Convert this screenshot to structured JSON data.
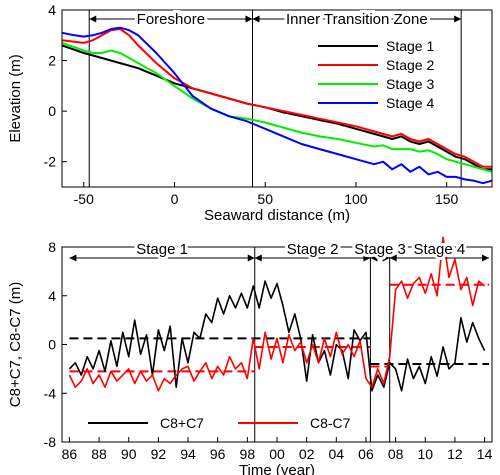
{
  "chart_data": [
    {
      "type": "line",
      "xlabel": "Seaward distance (m)",
      "ylabel": "Elevation (m)",
      "xlim": [
        -62,
        175
      ],
      "ylim": [
        -3,
        4
      ],
      "xticks": [
        -50,
        0,
        50,
        100,
        150
      ],
      "yticks": [
        -2,
        0,
        2,
        4
      ],
      "zones": [
        {
          "label": "Foreshore",
          "x0": -47,
          "x1": 43
        },
        {
          "label": "Inner Transition Zone",
          "x0": 43,
          "x1": 158
        }
      ],
      "legend_position": "top-right",
      "series": [
        {
          "name": "Stage 1",
          "color": "#000000",
          "x": [
            -62,
            -50,
            -40,
            -30,
            -20,
            -10,
            0,
            10,
            20,
            30,
            40,
            50,
            60,
            70,
            80,
            90,
            100,
            110,
            115,
            120,
            125,
            130,
            135,
            140,
            145,
            150,
            155,
            160,
            165,
            170,
            175
          ],
          "y": [
            2.6,
            2.3,
            2.1,
            1.9,
            1.7,
            1.4,
            1.1,
            0.9,
            0.7,
            0.5,
            0.3,
            0.15,
            -0.05,
            -0.2,
            -0.35,
            -0.5,
            -0.7,
            -0.9,
            -1.0,
            -1.1,
            -1.0,
            -1.2,
            -1.3,
            -1.2,
            -1.4,
            -1.6,
            -1.8,
            -1.9,
            -2.1,
            -2.3,
            -2.3
          ]
        },
        {
          "name": "Stage 2",
          "color": "#ff0000",
          "x": [
            -62,
            -50,
            -45,
            -40,
            -35,
            -30,
            -25,
            -20,
            -10,
            0,
            10,
            20,
            30,
            40,
            50,
            60,
            70,
            80,
            90,
            100,
            110,
            115,
            120,
            125,
            130,
            135,
            140,
            145,
            150,
            155,
            160,
            165,
            170,
            175
          ],
          "y": [
            2.8,
            2.7,
            2.8,
            3.0,
            3.2,
            3.25,
            3.0,
            2.6,
            1.9,
            1.3,
            0.9,
            0.7,
            0.5,
            0.3,
            0.15,
            0.0,
            -0.15,
            -0.3,
            -0.45,
            -0.6,
            -0.8,
            -0.9,
            -1.0,
            -0.9,
            -1.1,
            -1.2,
            -1.1,
            -1.3,
            -1.5,
            -1.7,
            -1.8,
            -2.0,
            -2.2,
            -2.2
          ]
        },
        {
          "name": "Stage 3",
          "color": "#00ee00",
          "x": [
            -62,
            -50,
            -45,
            -40,
            -35,
            -30,
            -25,
            -20,
            -10,
            0,
            10,
            20,
            30,
            40,
            50,
            60,
            70,
            80,
            90,
            100,
            110,
            115,
            120,
            125,
            130,
            135,
            140,
            145,
            150,
            155,
            160,
            165,
            170,
            175
          ],
          "y": [
            2.7,
            2.4,
            2.3,
            2.3,
            2.4,
            2.3,
            2.1,
            1.9,
            1.5,
            1.0,
            0.5,
            0.1,
            -0.2,
            -0.3,
            -0.45,
            -0.65,
            -0.85,
            -1.0,
            -1.1,
            -1.25,
            -1.4,
            -1.35,
            -1.5,
            -1.5,
            -1.5,
            -1.6,
            -1.55,
            -1.7,
            -1.9,
            -2.0,
            -2.1,
            -2.2,
            -2.3,
            -2.4
          ]
        },
        {
          "name": "Stage 4",
          "color": "#0000ff",
          "x": [
            -62,
            -55,
            -50,
            -45,
            -40,
            -35,
            -30,
            -25,
            -20,
            -10,
            0,
            10,
            20,
            30,
            40,
            50,
            60,
            70,
            80,
            90,
            100,
            110,
            115,
            120,
            125,
            130,
            135,
            140,
            145,
            150,
            155,
            160,
            165,
            170,
            175
          ],
          "y": [
            3.1,
            3.0,
            2.95,
            3.0,
            3.1,
            3.25,
            3.3,
            3.2,
            3.0,
            2.3,
            1.5,
            0.6,
            0.1,
            -0.2,
            -0.4,
            -0.7,
            -1.0,
            -1.3,
            -1.5,
            -1.7,
            -1.9,
            -2.1,
            -2.0,
            -2.3,
            -2.1,
            -2.4,
            -2.2,
            -2.5,
            -2.4,
            -2.6,
            -2.6,
            -2.7,
            -2.75,
            -2.85,
            -2.75
          ]
        }
      ]
    },
    {
      "type": "line",
      "xlabel": "Time (year)",
      "ylabel": "C8+C7, C8-C7 (m)",
      "xlim": [
        1985.5,
        2014.5
      ],
      "ylim": [
        -8,
        8
      ],
      "xticks": [
        1986,
        1988,
        1990,
        1992,
        1994,
        1996,
        1998,
        2000,
        2002,
        2004,
        2006,
        2008,
        2010,
        2012,
        2014
      ],
      "xticklabels": [
        "86",
        "88",
        "90",
        "92",
        "94",
        "96",
        "98",
        "00",
        "02",
        "04",
        "06",
        "08",
        "10",
        "12",
        "14"
      ],
      "yticks": [
        -8,
        -4,
        0,
        4,
        8
      ],
      "stages": [
        {
          "label": "Stage 1",
          "x0": 1986,
          "x1": 1998.5
        },
        {
          "label": "Stage 2",
          "x0": 1998.5,
          "x1": 2006.3
        },
        {
          "label": "Stage 3",
          "x0": 2006.3,
          "x1": 2007.6
        },
        {
          "label": "Stage 4",
          "x0": 2007.6,
          "x1": 2014.3
        }
      ],
      "legend_position": "bottom",
      "series": [
        {
          "name": "C8+C7",
          "color": "#000000",
          "x": [
            1986,
            1986.4,
            1986.8,
            1987.2,
            1987.6,
            1988,
            1988.4,
            1988.8,
            1989.2,
            1989.6,
            1990,
            1990.4,
            1990.8,
            1991.2,
            1991.6,
            1992,
            1992.4,
            1992.8,
            1993.2,
            1993.6,
            1994,
            1994.4,
            1994.8,
            1995.2,
            1995.6,
            1996,
            1996.4,
            1996.8,
            1997.2,
            1997.6,
            1998,
            1998.4,
            1998.8,
            1999.2,
            1999.6,
            2000,
            2000.4,
            2000.8,
            2001.2,
            2001.6,
            2002,
            2002.4,
            2002.8,
            2003.2,
            2003.6,
            2004,
            2004.4,
            2004.8,
            2005.2,
            2005.6,
            2006,
            2006.4,
            2006.8,
            2007.2,
            2007.6,
            2008,
            2008.4,
            2008.8,
            2009.2,
            2009.6,
            2010,
            2010.4,
            2010.8,
            2011.2,
            2011.6,
            2012,
            2012.4,
            2012.8,
            2013.2,
            2013.6,
            2014
          ],
          "y": [
            -2,
            -1.5,
            -2.5,
            -1,
            -2,
            -0.5,
            -2.2,
            0.3,
            -1.8,
            1,
            -1,
            2,
            -0.8,
            0.8,
            -2.5,
            1.2,
            -0.5,
            1.5,
            -3.5,
            0.5,
            -1.5,
            1,
            0.5,
            2.5,
            1.8,
            3.8,
            2.5,
            4,
            3,
            4.2,
            3,
            4.8,
            3,
            5.2,
            3.8,
            5,
            3.2,
            1,
            2.5,
            0.5,
            -3,
            0.8,
            -1.5,
            -0.5,
            -2.5,
            0,
            -0.5,
            -2.8,
            1.2,
            0.3,
            1,
            -3.8,
            -2.5,
            -3.5,
            -1.5,
            -2,
            -3.8,
            -1.2,
            -2.8,
            -1.8,
            -3.2,
            -1,
            -2.6,
            -0.2,
            -2,
            -1.5,
            2.2,
            0.2,
            1.8,
            0.5,
            -0.5
          ]
        },
        {
          "name": "C8-C7",
          "color": "#ff0000",
          "x": [
            1986,
            1986.4,
            1986.8,
            1987.2,
            1987.6,
            1988,
            1988.4,
            1988.8,
            1989.2,
            1989.6,
            1990,
            1990.4,
            1990.8,
            1991.2,
            1991.6,
            1992,
            1992.4,
            1992.8,
            1993.2,
            1993.6,
            1994,
            1994.4,
            1994.8,
            1995.2,
            1995.6,
            1996,
            1996.4,
            1996.8,
            1997.2,
            1997.6,
            1998,
            1998.4,
            1998.8,
            1999.2,
            1999.6,
            2000,
            2000.4,
            2000.8,
            2001.2,
            2001.6,
            2002,
            2002.4,
            2002.8,
            2003.2,
            2003.6,
            2004,
            2004.4,
            2004.8,
            2005.2,
            2005.6,
            2006,
            2006.4,
            2006.8,
            2007.2,
            2007.6,
            2008,
            2008.4,
            2008.8,
            2009.2,
            2009.6,
            2010,
            2010.4,
            2010.8,
            2011.2,
            2011.6,
            2012,
            2012.4,
            2012.8,
            2013.2,
            2013.6,
            2014
          ],
          "y": [
            -2.5,
            -3.5,
            -3,
            -2,
            -3.2,
            -2.5,
            -3.5,
            -2.2,
            -3,
            -2.5,
            -2,
            -3.2,
            -2.2,
            -3,
            -2.5,
            -3.8,
            -2.8,
            -3.2,
            -2.5,
            -2,
            -1.8,
            -3,
            -2.2,
            -1.5,
            -2.8,
            -1.8,
            -2.5,
            -1,
            -2,
            -1.5,
            -2.8,
            0.5,
            -2,
            1,
            -1.2,
            0.5,
            -1.5,
            0.8,
            -0.5,
            0.2,
            -1.5,
            0,
            -1.5,
            0.5,
            -1,
            1,
            -0.8,
            0,
            -1,
            0.3,
            -2.8,
            -3.5,
            -2,
            -3.2,
            -1,
            4.5,
            5.2,
            3.8,
            5,
            5.5,
            4.2,
            5.8,
            4,
            8.8,
            5.5,
            7,
            4.5,
            5.5,
            3.2,
            5.2,
            4.8
          ]
        }
      ],
      "means": [
        {
          "series": "C8+C7",
          "value": 0.5,
          "x0": 1986,
          "x1": 2006.3
        },
        {
          "series": "C8+C7",
          "value": -1.6,
          "x0": 2006.3,
          "x1": 2014.3
        },
        {
          "series": "C8-C7",
          "value": -2.2,
          "x0": 1986,
          "x1": 1998.5
        },
        {
          "series": "C8-C7",
          "value": -0.2,
          "x0": 1998.5,
          "x1": 2006.3
        },
        {
          "series": "C8-C7",
          "value": -1.8,
          "x0": 2006.3,
          "x1": 2007.6
        },
        {
          "series": "C8-C7",
          "value": 4.9,
          "x0": 2007.6,
          "x1": 2014.3
        }
      ]
    }
  ]
}
